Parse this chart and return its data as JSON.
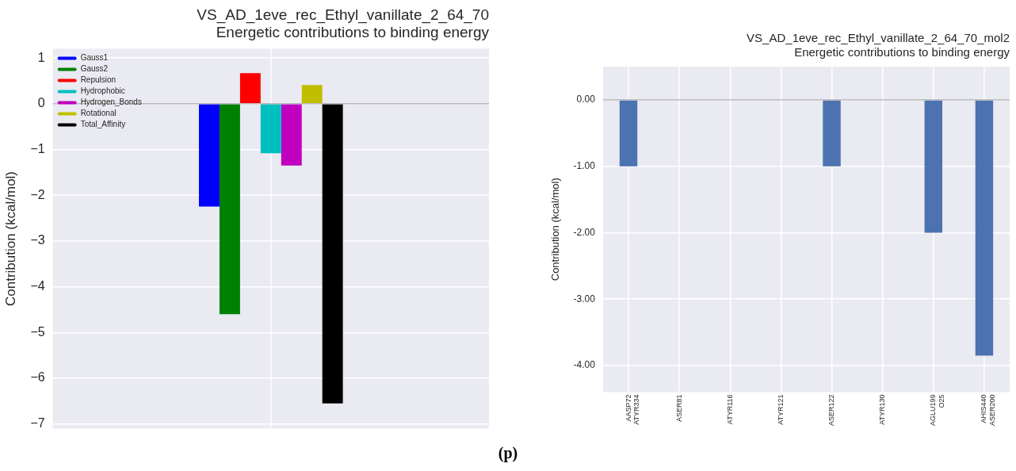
{
  "chart_data": [
    {
      "type": "bar",
      "title": "VS_AD_1eve_rec_Ethyl_vanillate_2_64_70\nEnergetic contributions to binding energy",
      "ylabel": "Contribution (kcal/mol)",
      "categories": [
        null
      ],
      "series": [
        {
          "name": "Gauss1",
          "color": "#0000ff",
          "values": [
            -2.25
          ]
        },
        {
          "name": "Gauss2",
          "color": "#008000",
          "values": [
            -4.6
          ]
        },
        {
          "name": "Repulsion",
          "color": "#ff0000",
          "values": [
            0.67
          ]
        },
        {
          "name": "Hydrophobic",
          "color": "#00bfbf",
          "values": [
            -1.08
          ]
        },
        {
          "name": "Hydrogen_Bonds",
          "color": "#bf00bf",
          "values": [
            -1.35
          ]
        },
        {
          "name": "Rotational",
          "color": "#bfbf00",
          "values": [
            0.41
          ]
        },
        {
          "name": "Total_Affinity",
          "color": "#000000",
          "values": [
            -6.55
          ]
        }
      ],
      "ylim": [
        -7.1,
        1.2
      ],
      "yticks": [
        {
          "value": -7,
          "label": "−7"
        },
        {
          "value": -6,
          "label": "−6"
        },
        {
          "value": -5,
          "label": "−5"
        },
        {
          "value": -4,
          "label": "−4"
        },
        {
          "value": -3,
          "label": "−3"
        },
        {
          "value": -2,
          "label": "−2"
        },
        {
          "value": -1,
          "label": "−1"
        },
        0,
        1
      ],
      "ref_lines": [
        {
          "axis": "y",
          "value": 0,
          "color": "#999999"
        }
      ],
      "grid": true,
      "legend": "top left",
      "annotations": [
        "(p)"
      ]
    },
    {
      "type": "bar",
      "title": "VS_AD_1eve_rec_Ethyl_vanillate_2_64_70_mol2\nEnergetic contributions to binding energy",
      "ylabel": "Contribution (kcal/mol)",
      "categories": [
        "AASP72\nATYR334",
        "ASER81",
        "ATYR116",
        "ATYR121",
        "ASER122",
        "ATYR130",
        "AGLU199\nO25",
        "AHIS440\nASER200"
      ],
      "values": [
        -1,
        0,
        0,
        0,
        -1,
        0,
        -2,
        -3.85
      ],
      "color": "#4c72b0",
      "ylim": [
        -4.4,
        0.5
      ],
      "yticks": [
        {
          "value": -4,
          "label": "-4.00"
        },
        {
          "value": -3,
          "label": "-3.00"
        },
        {
          "value": -2,
          "label": "-2.00"
        },
        {
          "value": -1,
          "label": "-1.00"
        },
        {
          "value": 0,
          "label": "0.00"
        }
      ],
      "ref_lines": [
        {
          "axis": "y",
          "value": 0,
          "color": "#999999"
        }
      ],
      "grid": true
    }
  ]
}
